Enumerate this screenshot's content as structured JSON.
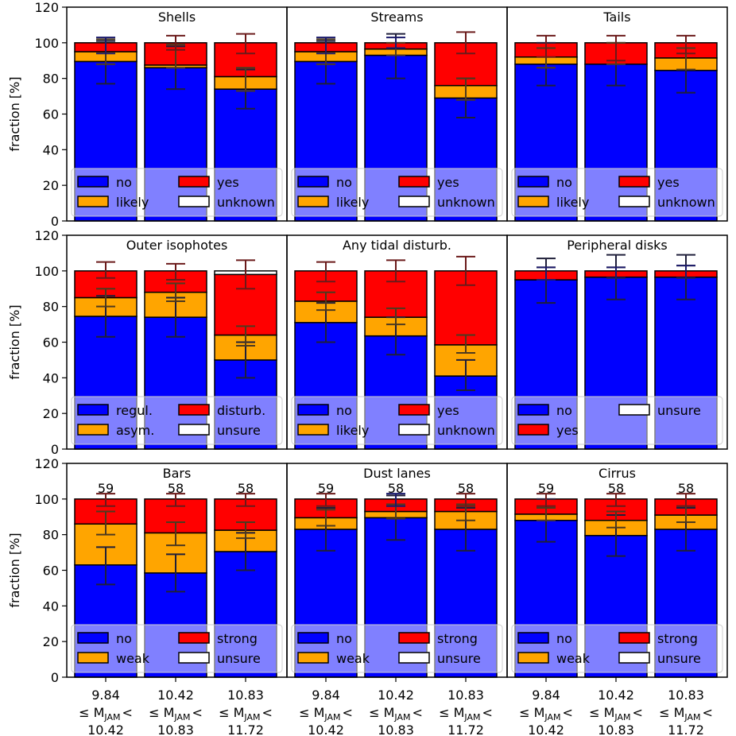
{
  "chart_data": {
    "type": "bar",
    "stacked": true,
    "ylabel": "fraction [%]",
    "ylim": [
      0,
      120
    ],
    "yticks": [
      0,
      20,
      40,
      60,
      80,
      100,
      120
    ],
    "categories": [
      {
        "low": "9.84",
        "rel": "≤ M",
        "sub": "JAM",
        "lt": "<",
        "high": "10.42"
      },
      {
        "low": "10.42",
        "rel": "≤ M",
        "sub": "JAM",
        "lt": "<",
        "high": "10.83"
      },
      {
        "low": "10.83",
        "rel": "≤ M",
        "sub": "JAM",
        "lt": "<",
        "high": "11.72"
      }
    ],
    "colors": {
      "blue": "#0000ff",
      "orange": "#ffa500",
      "red": "#ff0000",
      "white": "#ffffff"
    },
    "error_colors": {
      "low": "#1f1f3a",
      "mid": "#4d3a1f",
      "top": "#6b1a1a",
      "blue_top": "#1a1a6b"
    },
    "panels": [
      {
        "title": "Shells",
        "legend": [
          "no",
          "yes",
          "likely",
          "unknown"
        ],
        "legend_colors": [
          "blue",
          "red",
          "orange",
          "white"
        ],
        "series": [
          {
            "name": "no",
            "values": [
              89.5,
              86,
              74
            ]
          },
          {
            "name": "likely",
            "values": [
              5.5,
              1.5,
              7
            ]
          },
          {
            "name": "yes",
            "values": [
              5,
              12.5,
              19
            ]
          },
          {
            "name": "unknown",
            "values": [
              0,
              0,
              0
            ]
          }
        ],
        "errors": [
          [
            [
              77,
              101
            ],
            [
              88,
              102
            ],
            [
              94,
              103
            ]
          ],
          [
            [
              74,
              98
            ],
            [
              86,
              99
            ],
            [
              96,
              104
            ]
          ],
          [
            [
              63,
              85
            ],
            [
              73,
              86
            ],
            [
              94,
              105
            ]
          ]
        ],
        "error_tops_blue": [
          true,
          false,
          false
        ]
      },
      {
        "title": "Streams",
        "legend": [
          "no",
          "yes",
          "likely",
          "unknown"
        ],
        "legend_colors": [
          "blue",
          "red",
          "orange",
          "white"
        ],
        "series": [
          {
            "name": "no",
            "values": [
              89.5,
              93,
              69
            ]
          },
          {
            "name": "likely",
            "values": [
              5.5,
              3.5,
              7
            ]
          },
          {
            "name": "yes",
            "values": [
              5,
              3.5,
              24
            ]
          },
          {
            "name": "unknown",
            "values": [
              0,
              0,
              0
            ]
          }
        ],
        "errors": [
          [
            [
              77,
              101
            ],
            [
              88,
              102
            ],
            [
              94,
              103
            ]
          ],
          [
            [
              80,
              105
            ],
            [
              93,
              100
            ],
            [
              97,
              103
            ]
          ],
          [
            [
              58,
              80
            ],
            [
              68,
              80
            ],
            [
              94,
              106
            ]
          ]
        ],
        "error_tops_blue": [
          true,
          true,
          false
        ]
      },
      {
        "title": "Tails",
        "legend": [
          "no",
          "yes",
          "likely",
          "unknown"
        ],
        "legend_colors": [
          "blue",
          "red",
          "orange",
          "white"
        ],
        "series": [
          {
            "name": "no",
            "values": [
              88,
              88,
              84.5
            ]
          },
          {
            "name": "likely",
            "values": [
              4,
              0,
              7
            ]
          },
          {
            "name": "yes",
            "values": [
              8,
              12,
              8.5
            ]
          },
          {
            "name": "unknown",
            "values": [
              0,
              0,
              0
            ]
          }
        ],
        "errors": [
          [
            [
              76,
              100
            ],
            [
              86,
              97
            ],
            [
              92,
              104
            ]
          ],
          [
            [
              76,
              100
            ],
            [
              88,
              100
            ],
            [
              90,
              104
            ]
          ],
          [
            [
              72,
              97
            ],
            [
              85,
              97
            ],
            [
              94,
              104
            ]
          ]
        ],
        "error_tops_blue": [
          false,
          false,
          false
        ]
      },
      {
        "title": "Outer isophotes",
        "legend": [
          "regul.",
          "disturb.",
          "asym.",
          "unsure"
        ],
        "legend_colors": [
          "blue",
          "red",
          "orange",
          "white"
        ],
        "series": [
          {
            "name": "regul.",
            "values": [
              74.5,
              74,
              50
            ]
          },
          {
            "name": "asym.",
            "values": [
              10.5,
              14,
              14
            ]
          },
          {
            "name": "disturb.",
            "values": [
              15,
              12,
              34
            ]
          },
          {
            "name": "unsure",
            "values": [
              0,
              0,
              2
            ]
          }
        ],
        "errors": [
          [
            [
              63,
              86
            ],
            [
              80,
              90
            ],
            [
              96,
              105
            ]
          ],
          [
            [
              63,
              85
            ],
            [
              83,
              93
            ],
            [
              95,
              104
            ]
          ],
          [
            [
              40,
              60
            ],
            [
              58,
              69
            ],
            [
              90,
              106
            ]
          ]
        ],
        "error_tops_blue": [
          false,
          false,
          false
        ]
      },
      {
        "title": "Any tidal disturb.",
        "legend": [
          "no",
          "yes",
          "likely",
          "unknown"
        ],
        "legend_colors": [
          "blue",
          "red",
          "orange",
          "white"
        ],
        "series": [
          {
            "name": "no",
            "values": [
              71,
              63.5,
              41
            ]
          },
          {
            "name": "likely",
            "values": [
              12,
              10.5,
              17.5
            ]
          },
          {
            "name": "yes",
            "values": [
              17,
              26,
              41.5
            ]
          },
          {
            "name": "unknown",
            "values": [
              0,
              0,
              0
            ]
          }
        ],
        "errors": [
          [
            [
              60,
              82
            ],
            [
              78,
              88
            ],
            [
              94,
              105
            ]
          ],
          [
            [
              53,
              74
            ],
            [
              70,
              79
            ],
            [
              94,
              106
            ]
          ],
          [
            [
              33,
              50
            ],
            [
              54,
              64
            ],
            [
              92,
              108
            ]
          ]
        ],
        "error_tops_blue": [
          false,
          false,
          false
        ]
      },
      {
        "title": "Peripheral disks",
        "legend": [
          "no",
          "unsure",
          "yes"
        ],
        "legend_colors": [
          "blue",
          "white",
          "red"
        ],
        "series": [
          {
            "name": "no",
            "values": [
              95,
              96.5,
              96.5
            ]
          },
          {
            "name": "likely",
            "values": [
              0,
              0,
              0
            ]
          },
          {
            "name": "yes",
            "values": [
              5,
              3.5,
              3.5
            ]
          },
          {
            "name": "unsure",
            "values": [
              0,
              0,
              0
            ]
          }
        ],
        "errors": [
          [
            [
              82,
              107
            ],
            [
              95,
              102
            ],
            [
              95,
              102
            ]
          ],
          [
            [
              84,
              109
            ],
            [
              96,
              102
            ],
            [
              96,
              102
            ]
          ],
          [
            [
              84,
              109
            ],
            [
              96,
              103
            ],
            [
              96,
              103
            ]
          ]
        ],
        "error_tops_blue": [
          true,
          true,
          true
        ]
      },
      {
        "title": "Bars",
        "legend": [
          "no",
          "strong",
          "weak",
          "unsure"
        ],
        "legend_colors": [
          "blue",
          "red",
          "orange",
          "white"
        ],
        "counts": [
          "59",
          "58",
          "58"
        ],
        "series": [
          {
            "name": "no",
            "values": [
              63,
              58.5,
              70.5
            ]
          },
          {
            "name": "weak",
            "values": [
              23,
              22.5,
              12
            ]
          },
          {
            "name": "strong",
            "values": [
              14,
              19,
              17.5
            ]
          },
          {
            "name": "unsure",
            "values": [
              0,
              0,
              0
            ]
          }
        ],
        "errors": [
          [
            [
              52,
              73
            ],
            [
              80,
              93
            ],
            [
              96,
              103
            ]
          ],
          [
            [
              48,
              69
            ],
            [
              74,
              87
            ],
            [
              96,
              103
            ]
          ],
          [
            [
              60,
              81
            ],
            [
              78,
              87
            ],
            [
              96,
              103
            ]
          ]
        ],
        "error_tops_blue": [
          false,
          false,
          false
        ]
      },
      {
        "title": "Dust lanes",
        "legend": [
          "no",
          "strong",
          "weak",
          "unsure"
        ],
        "legend_colors": [
          "blue",
          "red",
          "orange",
          "white"
        ],
        "counts": [
          "59",
          "58",
          "58"
        ],
        "series": [
          {
            "name": "no",
            "values": [
              83,
              89.5,
              83
            ]
          },
          {
            "name": "weak",
            "values": [
              6.5,
              3.5,
              10
            ]
          },
          {
            "name": "strong",
            "values": [
              10.5,
              7,
              7
            ]
          },
          {
            "name": "unsure",
            "values": [
              0,
              0,
              0
            ]
          }
        ],
        "errors": [
          [
            [
              71,
              95
            ],
            [
              85,
              94
            ],
            [
              96,
              103
            ]
          ],
          [
            [
              77,
              102
            ],
            [
              89,
              97
            ],
            [
              96,
              103
            ]
          ],
          [
            [
              71,
              95
            ],
            [
              88,
              97
            ],
            [
              96,
              103
            ]
          ]
        ],
        "error_tops_blue": [
          false,
          true,
          false
        ]
      },
      {
        "title": "Cirrus",
        "legend": [
          "no",
          "strong",
          "weak",
          "unsure"
        ],
        "legend_colors": [
          "blue",
          "red",
          "orange",
          "white"
        ],
        "counts": [
          "59",
          "58",
          "58"
        ],
        "series": [
          {
            "name": "no",
            "values": [
              88,
              79.5,
              83
            ]
          },
          {
            "name": "weak",
            "values": [
              3.5,
              8.5,
              8
            ]
          },
          {
            "name": "strong",
            "values": [
              8.5,
              12,
              9
            ]
          },
          {
            "name": "unsure",
            "values": [
              0,
              0,
              0
            ]
          }
        ],
        "errors": [
          [
            [
              76,
              100
            ],
            [
              88,
              95
            ],
            [
              96,
              103
            ]
          ],
          [
            [
              68,
              91
            ],
            [
              84,
              93
            ],
            [
              96,
              103
            ]
          ],
          [
            [
              71,
              95
            ],
            [
              87,
              96
            ],
            [
              96,
              103
            ]
          ]
        ],
        "error_tops_blue": [
          false,
          false,
          false
        ]
      }
    ]
  }
}
